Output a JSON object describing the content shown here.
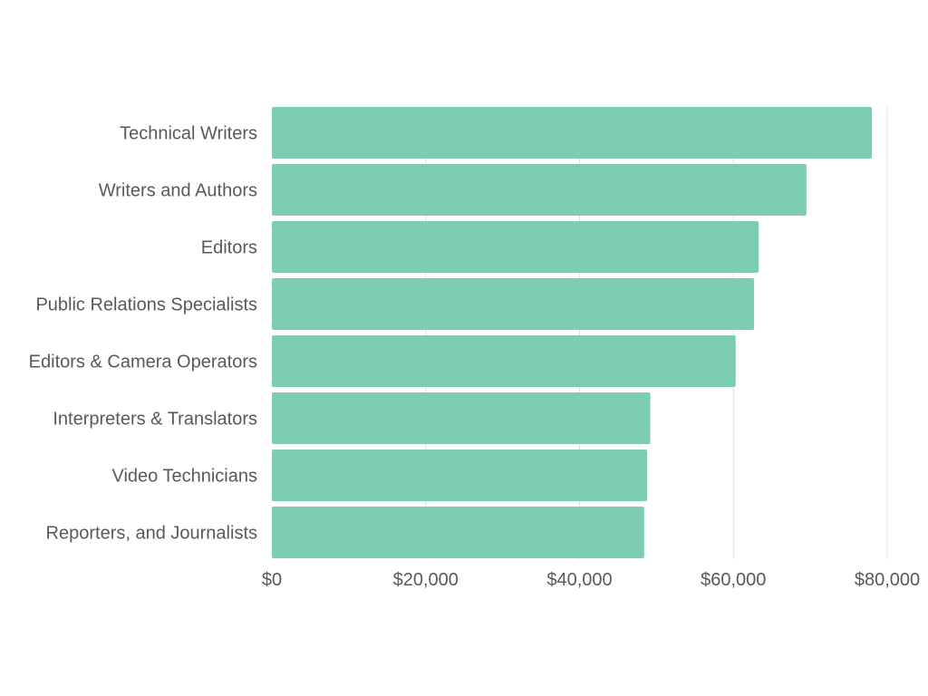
{
  "chart_data": {
    "type": "bar",
    "orientation": "horizontal",
    "categories": [
      "Technical Writers",
      "Writers and Authors",
      "Editors",
      "Public Relations Specialists",
      "Editors & Camera Operators",
      "Interpreters & Translators",
      "Video Technicians",
      "Reporters, and Journalists"
    ],
    "values": [
      78000,
      69500,
      63300,
      62700,
      60300,
      49200,
      48800,
      48400
    ],
    "x_ticks": [
      "$0",
      "$20,000",
      "$40,000",
      "$60,000",
      "$80,000"
    ],
    "x_tick_values": [
      0,
      20000,
      40000,
      60000,
      80000
    ],
    "xlim": [
      0,
      80000
    ],
    "grid": true,
    "legend": "none",
    "bar_color": "#7ccdb4",
    "title": "",
    "xlabel": "",
    "ylabel": ""
  }
}
